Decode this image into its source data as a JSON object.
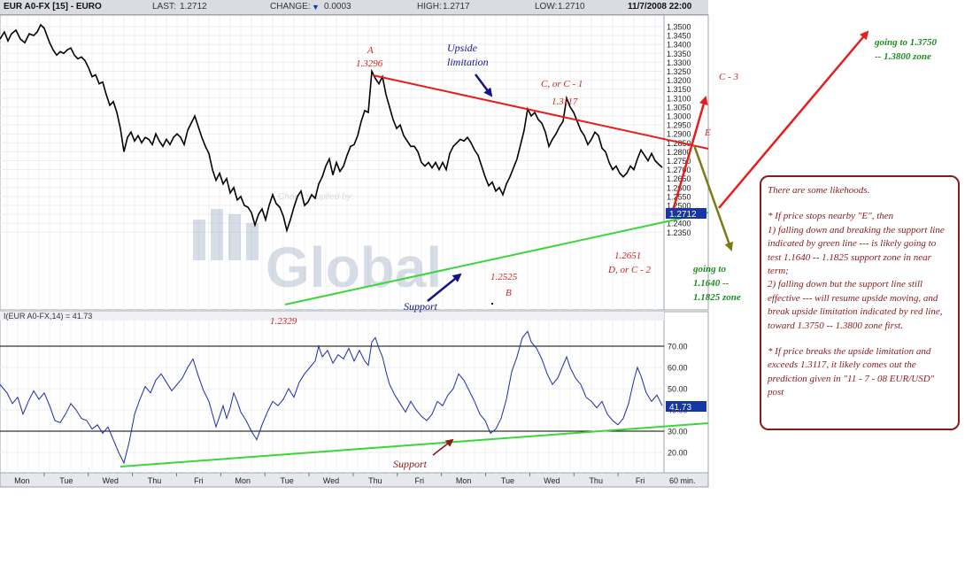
{
  "header": {
    "symbol": "EUR A0-FX [15] - EURO",
    "last_label": "LAST:",
    "last_value": "1.2712",
    "change_label": "CHANGE:",
    "change_value": "0.0003",
    "change_direction": "down",
    "high_label": "HIGH:",
    "high_value": "1.2717",
    "low_label": "LOW:",
    "low_value": "1.2710",
    "datetime": "11/7/2008 22:00"
  },
  "watermark": {
    "brand": "Global",
    "faint_text": "Charts supplied by:"
  },
  "colors": {
    "price": "#000000",
    "rsi": "#1a2ca8",
    "resistance": "#e81c1c",
    "support": "#3ad63a",
    "annotation_red": "#d21f1f",
    "annotation_green": "#1e8c1e",
    "annotation_blue": "#14148c",
    "commentary": "#8b1a1a",
    "olive_arrow": "#7a7a12",
    "last_box": "#1636a6"
  },
  "chart_data": [
    {
      "type": "line",
      "name": "price",
      "x_unit": "15-minute bars",
      "x_categories": [
        "Mon",
        "Tue",
        "Wed",
        "Thu",
        "Fri",
        "Mon",
        "Tue",
        "Wed",
        "Thu",
        "Fri",
        "Mon",
        "Tue",
        "Wed",
        "Thu",
        "Fri"
      ],
      "ylim": [
        1.234,
        1.355
      ],
      "y_ticks": [
        "1.2350",
        "1.2400",
        "1.2450",
        "1.2500",
        "1.2550",
        "1.2600",
        "1.2650",
        "1.2700",
        "1.2750",
        "1.2800",
        "1.2850",
        "1.2900",
        "1.2950",
        "1.3000",
        "1.3050",
        "1.3100",
        "1.3150",
        "1.3200",
        "1.3250",
        "1.3300",
        "1.3350",
        "1.3400",
        "1.3450",
        "1.3500"
      ],
      "last_value_label": "1.2712",
      "series_points": [
        [
          0,
          1.343
        ],
        [
          5,
          1.347
        ],
        [
          9,
          1.342
        ],
        [
          13,
          1.346
        ],
        [
          18,
          1.348
        ],
        [
          23,
          1.343
        ],
        [
          28,
          1.341
        ],
        [
          33,
          1.346
        ],
        [
          38,
          1.345
        ],
        [
          42,
          1.347
        ],
        [
          46,
          1.351
        ],
        [
          50,
          1.349
        ],
        [
          53,
          1.345
        ],
        [
          56,
          1.341
        ],
        [
          60,
          1.337
        ],
        [
          64,
          1.334
        ],
        [
          68,
          1.336
        ],
        [
          72,
          1.335
        ],
        [
          76,
          1.337
        ],
        [
          80,
          1.338
        ],
        [
          84,
          1.334
        ],
        [
          88,
          1.332
        ],
        [
          92,
          1.333
        ],
        [
          96,
          1.331
        ],
        [
          100,
          1.327
        ],
        [
          104,
          1.322
        ],
        [
          108,
          1.323
        ],
        [
          112,
          1.318
        ],
        [
          116,
          1.319
        ],
        [
          120,
          1.312
        ],
        [
          124,
          1.306
        ],
        [
          128,
          1.308
        ],
        [
          132,
          1.302
        ],
        [
          136,
          1.293
        ],
        [
          140,
          1.28
        ],
        [
          144,
          1.288
        ],
        [
          148,
          1.291
        ],
        [
          152,
          1.286
        ],
        [
          156,
          1.289
        ],
        [
          160,
          1.285
        ],
        [
          164,
          1.288
        ],
        [
          168,
          1.287
        ],
        [
          172,
          1.284
        ],
        [
          176,
          1.29
        ],
        [
          180,
          1.286
        ],
        [
          184,
          1.283
        ],
        [
          188,
          1.287
        ],
        [
          192,
          1.284
        ],
        [
          196,
          1.288
        ],
        [
          200,
          1.29
        ],
        [
          204,
          1.288
        ],
        [
          208,
          1.284
        ],
        [
          212,
          1.292
        ],
        [
          216,
          1.296
        ],
        [
          220,
          1.3
        ],
        [
          224,
          1.294
        ],
        [
          228,
          1.288
        ],
        [
          232,
          1.283
        ],
        [
          236,
          1.279
        ],
        [
          240,
          1.27
        ],
        [
          244,
          1.264
        ],
        [
          248,
          1.268
        ],
        [
          252,
          1.262
        ],
        [
          256,
          1.265
        ],
        [
          260,
          1.257
        ],
        [
          264,
          1.26
        ],
        [
          268,
          1.253
        ],
        [
          272,
          1.255
        ],
        [
          276,
          1.25
        ],
        [
          280,
          1.249
        ],
        [
          284,
          1.246
        ],
        [
          288,
          1.239
        ],
        [
          292,
          1.245
        ],
        [
          296,
          1.248
        ],
        [
          300,
          1.242
        ],
        [
          304,
          1.25
        ],
        [
          308,
          1.256
        ],
        [
          312,
          1.251
        ],
        [
          316,
          1.249
        ],
        [
          320,
          1.244
        ],
        [
          324,
          1.236
        ],
        [
          328,
          1.242
        ],
        [
          332,
          1.249
        ],
        [
          336,
          1.255
        ],
        [
          340,
          1.258
        ],
        [
          344,
          1.25
        ],
        [
          348,
          1.252
        ],
        [
          352,
          1.256
        ],
        [
          356,
          1.254
        ],
        [
          360,
          1.262
        ],
        [
          364,
          1.266
        ],
        [
          368,
          1.272
        ],
        [
          372,
          1.276
        ],
        [
          376,
          1.267
        ],
        [
          380,
          1.274
        ],
        [
          384,
          1.269
        ],
        [
          388,
          1.272
        ],
        [
          392,
          1.278
        ],
        [
          396,
          1.283
        ],
        [
          400,
          1.284
        ],
        [
          404,
          1.289
        ],
        [
          408,
          1.297
        ],
        [
          412,
          1.303
        ],
        [
          416,
          1.302
        ],
        [
          420,
          1.325
        ],
        [
          424,
          1.321
        ],
        [
          428,
          1.318
        ],
        [
          432,
          1.322
        ],
        [
          436,
          1.312
        ],
        [
          440,
          1.305
        ],
        [
          444,
          1.298
        ],
        [
          448,
          1.293
        ],
        [
          452,
          1.295
        ],
        [
          456,
          1.289
        ],
        [
          460,
          1.286
        ],
        [
          464,
          1.283
        ],
        [
          468,
          1.283
        ],
        [
          472,
          1.28
        ],
        [
          476,
          1.274
        ],
        [
          480,
          1.272
        ],
        [
          484,
          1.274
        ],
        [
          488,
          1.271
        ],
        [
          492,
          1.274
        ],
        [
          496,
          1.27
        ],
        [
          500,
          1.274
        ],
        [
          504,
          1.27
        ],
        [
          508,
          1.279
        ],
        [
          512,
          1.283
        ],
        [
          516,
          1.285
        ],
        [
          520,
          1.287
        ],
        [
          524,
          1.286
        ],
        [
          528,
          1.288
        ],
        [
          532,
          1.285
        ],
        [
          536,
          1.281
        ],
        [
          540,
          1.278
        ],
        [
          544,
          1.272
        ],
        [
          548,
          1.266
        ],
        [
          552,
          1.261
        ],
        [
          556,
          1.263
        ],
        [
          560,
          1.258
        ],
        [
          564,
          1.26
        ],
        [
          568,
          1.256
        ],
        [
          572,
          1.262
        ],
        [
          576,
          1.266
        ],
        [
          580,
          1.271
        ],
        [
          584,
          1.276
        ],
        [
          588,
          1.284
        ],
        [
          592,
          1.292
        ],
        [
          596,
          1.304
        ],
        [
          600,
          1.3
        ],
        [
          604,
          1.302
        ],
        [
          608,
          1.298
        ],
        [
          612,
          1.296
        ],
        [
          616,
          1.291
        ],
        [
          620,
          1.283
        ],
        [
          624,
          1.287
        ],
        [
          628,
          1.29
        ],
        [
          632,
          1.294
        ],
        [
          636,
          1.297
        ],
        [
          640,
          1.31
        ],
        [
          644,
          1.305
        ],
        [
          648,
          1.302
        ],
        [
          652,
          1.297
        ],
        [
          656,
          1.292
        ],
        [
          660,
          1.289
        ],
        [
          664,
          1.284
        ],
        [
          668,
          1.287
        ],
        [
          672,
          1.291
        ],
        [
          676,
          1.289
        ],
        [
          680,
          1.282
        ],
        [
          684,
          1.28
        ],
        [
          688,
          1.274
        ],
        [
          692,
          1.27
        ],
        [
          696,
          1.272
        ],
        [
          700,
          1.268
        ],
        [
          704,
          1.266
        ],
        [
          708,
          1.268
        ],
        [
          712,
          1.272
        ],
        [
          716,
          1.27
        ],
        [
          720,
          1.276
        ],
        [
          724,
          1.281
        ],
        [
          728,
          1.278
        ],
        [
          732,
          1.275
        ],
        [
          736,
          1.279
        ],
        [
          740,
          1.275
        ],
        [
          744,
          1.273
        ],
        [
          748,
          1.2712
        ]
      ],
      "annotation_levels": {
        "A": 1.3296,
        "B": 1.2525,
        "C": 1.3117,
        "D": 1.2651,
        "low": 1.2329
      }
    },
    {
      "type": "line",
      "name": "RSI",
      "title": "I(EUR A0-FX,14) = 41.73",
      "ylim": [
        12,
        80
      ],
      "y_ticks": [
        "20.00",
        "30.00",
        "40.00",
        "50.00",
        "60.00",
        "70.00"
      ],
      "reference_lines": [
        30,
        70
      ],
      "last_value_label": "41.73",
      "series_points": [
        [
          0,
          52
        ],
        [
          8,
          48
        ],
        [
          14,
          43
        ],
        [
          20,
          46
        ],
        [
          26,
          38
        ],
        [
          32,
          44
        ],
        [
          38,
          49
        ],
        [
          44,
          45
        ],
        [
          50,
          48
        ],
        [
          56,
          42
        ],
        [
          62,
          35
        ],
        [
          68,
          34
        ],
        [
          74,
          38
        ],
        [
          80,
          43
        ],
        [
          86,
          40
        ],
        [
          92,
          36
        ],
        [
          98,
          35
        ],
        [
          104,
          31
        ],
        [
          110,
          33
        ],
        [
          116,
          29
        ],
        [
          122,
          32
        ],
        [
          128,
          26
        ],
        [
          134,
          20
        ],
        [
          140,
          15
        ],
        [
          146,
          25
        ],
        [
          152,
          38
        ],
        [
          158,
          45
        ],
        [
          164,
          51
        ],
        [
          170,
          48
        ],
        [
          176,
          54
        ],
        [
          182,
          57
        ],
        [
          188,
          53
        ],
        [
          194,
          49
        ],
        [
          200,
          52
        ],
        [
          206,
          55
        ],
        [
          212,
          60
        ],
        [
          218,
          64
        ],
        [
          224,
          56
        ],
        [
          230,
          49
        ],
        [
          236,
          44
        ],
        [
          240,
          38
        ],
        [
          244,
          32
        ],
        [
          248,
          37
        ],
        [
          252,
          42
        ],
        [
          256,
          36
        ],
        [
          260,
          41
        ],
        [
          264,
          48
        ],
        [
          268,
          44
        ],
        [
          272,
          39
        ],
        [
          278,
          35
        ],
        [
          284,
          30
        ],
        [
          290,
          26
        ],
        [
          296,
          33
        ],
        [
          302,
          39
        ],
        [
          308,
          44
        ],
        [
          314,
          42
        ],
        [
          320,
          45
        ],
        [
          326,
          50
        ],
        [
          332,
          46
        ],
        [
          338,
          53
        ],
        [
          344,
          57
        ],
        [
          350,
          60
        ],
        [
          356,
          63
        ],
        [
          360,
          70
        ],
        [
          364,
          65
        ],
        [
          370,
          68
        ],
        [
          376,
          62
        ],
        [
          382,
          66
        ],
        [
          388,
          64
        ],
        [
          394,
          69
        ],
        [
          400,
          63
        ],
        [
          406,
          68
        ],
        [
          412,
          63
        ],
        [
          416,
          61
        ],
        [
          420,
          72
        ],
        [
          424,
          74
        ],
        [
          428,
          69
        ],
        [
          432,
          65
        ],
        [
          436,
          58
        ],
        [
          440,
          52
        ],
        [
          446,
          47
        ],
        [
          452,
          43
        ],
        [
          458,
          39
        ],
        [
          464,
          44
        ],
        [
          470,
          40
        ],
        [
          476,
          37
        ],
        [
          482,
          35
        ],
        [
          488,
          38
        ],
        [
          494,
          44
        ],
        [
          500,
          42
        ],
        [
          506,
          47
        ],
        [
          512,
          50
        ],
        [
          518,
          57
        ],
        [
          524,
          54
        ],
        [
          530,
          49
        ],
        [
          536,
          44
        ],
        [
          542,
          38
        ],
        [
          548,
          35
        ],
        [
          554,
          29
        ],
        [
          560,
          31
        ],
        [
          566,
          36
        ],
        [
          572,
          45
        ],
        [
          578,
          58
        ],
        [
          584,
          65
        ],
        [
          590,
          74
        ],
        [
          596,
          77
        ],
        [
          600,
          72
        ],
        [
          606,
          69
        ],
        [
          612,
          64
        ],
        [
          618,
          57
        ],
        [
          624,
          52
        ],
        [
          630,
          55
        ],
        [
          636,
          61
        ],
        [
          640,
          65
        ],
        [
          644,
          60
        ],
        [
          650,
          55
        ],
        [
          656,
          52
        ],
        [
          662,
          46
        ],
        [
          668,
          44
        ],
        [
          674,
          41
        ],
        [
          680,
          44
        ],
        [
          686,
          38
        ],
        [
          692,
          35
        ],
        [
          698,
          33
        ],
        [
          704,
          36
        ],
        [
          710,
          43
        ],
        [
          716,
          54
        ],
        [
          720,
          60
        ],
        [
          724,
          56
        ],
        [
          730,
          48
        ],
        [
          736,
          44
        ],
        [
          742,
          47
        ],
        [
          748,
          42
        ]
      ]
    }
  ],
  "x_axis": {
    "labels": [
      "Mon",
      "Tue",
      "Wed",
      "Thu",
      "Fri",
      "Mon",
      "Tue",
      "Wed",
      "Thu",
      "Fri",
      "Mon",
      "Tue",
      "Wed",
      "Thu",
      "Fri"
    ],
    "interval": "60 min."
  },
  "annotations": {
    "a_letter": "A",
    "a_value": "1.3296",
    "upside_line1": "Upside",
    "upside_line2": "limitation",
    "c_label": "C, or C - 1",
    "c_value": "1.3117",
    "c3_label": "C - 3",
    "e_label": "E",
    "going_high_line1": "going to 1.3750",
    "going_high_line2": "-- 1.3800 zone",
    "going_low_line1": "going to",
    "going_low_line2": "1.1640 --",
    "going_low_line3": "1.1825 zone",
    "d_value": "1.2651",
    "d_label": "D, or C - 2",
    "b_value": "1.2525",
    "b_letter": "B",
    "support_top": "Support",
    "low_value": "1.2329",
    "support_bottom": "Support"
  },
  "commentary": {
    "p1": "There are some likehoods.",
    "p2": "* If price stops nearby \"E\", then\n1) falling down and breaking the support line indicated by green line --- is likely going to test 1.1640 -- 1.1825 support zone in near term;\n2) falling down but the support line still effective --- will resume upside moving, and break upside limitation  indicated by red line, toward 1.3750 -- 1.3800 zone first.",
    "p3": "* If price breaks the upside limitation and exceeds 1.3117, it likely comes out the prediction given in \"11 - 7 - 08  EUR/USD\"  post"
  }
}
